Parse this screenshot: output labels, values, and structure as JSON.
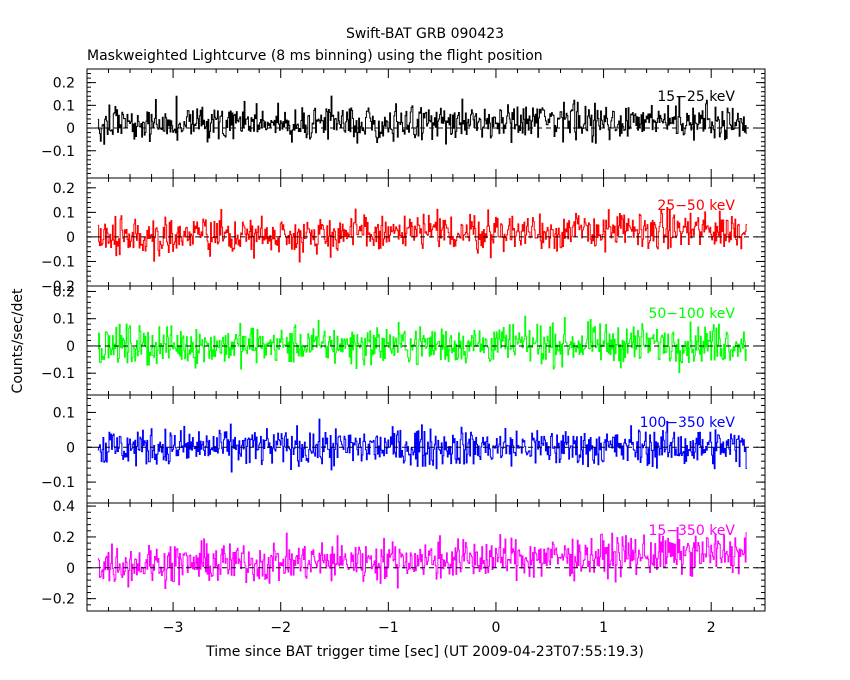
{
  "chart_data": {
    "type": "line",
    "title": "Swift-BAT GRB 090423",
    "subtitle": "Maskweighted Lightcurve (8 ms binning) using the flight position",
    "xlabel": "Time since BAT trigger time [sec] (UT 2009-04-23T07:55:19.3)",
    "ylabel": "Counts/sec/det",
    "xlim": [
      -3.8,
      2.5
    ],
    "xticks": [
      -3,
      -2,
      -1,
      0,
      1,
      2
    ],
    "xtick_labels": [
      "−3",
      "−2",
      "−1",
      "0",
      "1",
      "2"
    ],
    "x_start": -3.7,
    "x_end": 2.33,
    "bin_width": 0.008,
    "grid": false,
    "panels": [
      {
        "name": "15−25 keV",
        "color": "#000000",
        "ylim": [
          -0.22,
          0.26
        ],
        "yticks": [
          -0.1,
          0,
          0.1,
          0.2
        ],
        "ytick_labels": [
          "−0.1",
          "0",
          "0.1",
          "0.2"
        ],
        "noise_amplitude": 0.07,
        "trend": [
          [
            -3.7,
            0.02
          ],
          [
            2.33,
            0.03
          ]
        ]
      },
      {
        "name": "25−50 keV",
        "color": "#ff0000",
        "ylim": [
          -0.2,
          0.24
        ],
        "yticks": [
          -0.2,
          -0.1,
          0,
          0.1,
          0.2
        ],
        "ytick_labels": [
          "−0.2",
          "−0.1",
          "0",
          "0.1",
          "0.2"
        ],
        "noise_amplitude": 0.07,
        "trend": [
          [
            -3.7,
            0.0
          ],
          [
            0,
            0.02
          ],
          [
            2.33,
            0.03
          ]
        ]
      },
      {
        "name": "50−100 keV",
        "color": "#00ff00",
        "ylim": [
          -0.18,
          0.22
        ],
        "yticks": [
          -0.1,
          0,
          0.1,
          0.2
        ],
        "ytick_labels": [
          "−0.1",
          "0",
          "0.1",
          "0.2"
        ],
        "noise_amplitude": 0.065,
        "trend": [
          [
            -3.7,
            0.0
          ],
          [
            2.33,
            0.01
          ]
        ]
      },
      {
        "name": "100−350 keV",
        "color": "#0000ff",
        "ylim": [
          -0.16,
          0.15
        ],
        "yticks": [
          -0.1,
          0,
          0.1
        ],
        "ytick_labels": [
          "−0.1",
          "0",
          "0.1"
        ],
        "noise_amplitude": 0.05,
        "trend": [
          [
            -3.7,
            0.0
          ],
          [
            2.33,
            0.0
          ]
        ]
      },
      {
        "name": "15−350 keV",
        "color": "#ff00ff",
        "ylim": [
          -0.28,
          0.42
        ],
        "yticks": [
          -0.2,
          0,
          0.2,
          0.4
        ],
        "ytick_labels": [
          "−0.2",
          "0",
          "0.2",
          "0.4"
        ],
        "noise_amplitude": 0.12,
        "trend": [
          [
            -3.7,
            0.02
          ],
          [
            0,
            0.06
          ],
          [
            2.33,
            0.1
          ]
        ]
      }
    ]
  }
}
